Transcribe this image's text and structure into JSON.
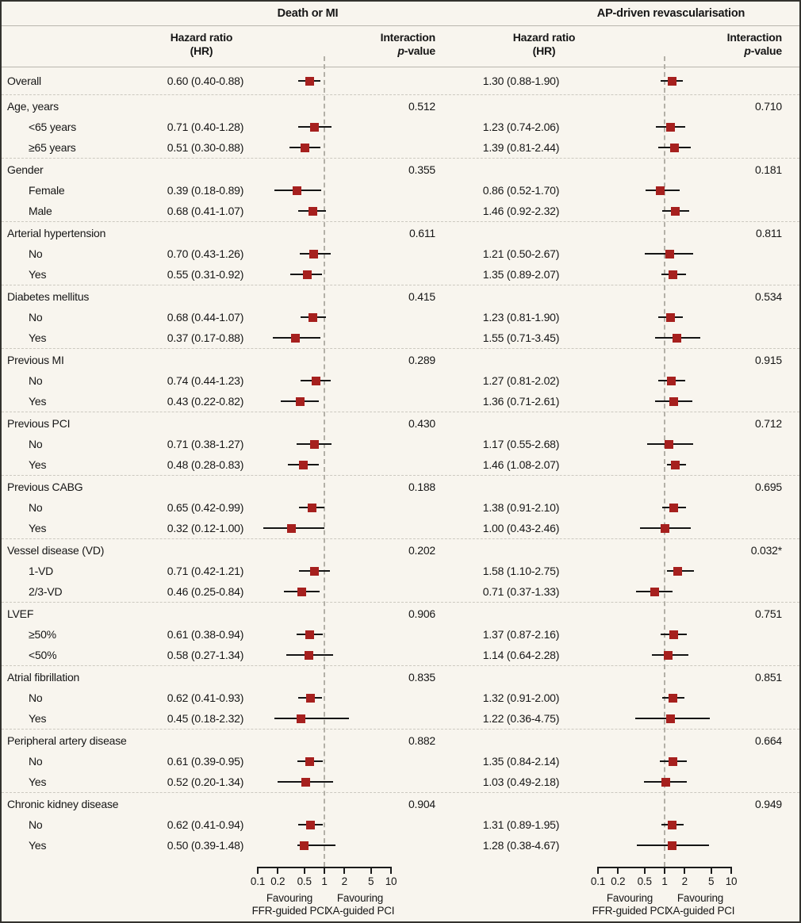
{
  "header": {
    "outcome_left": "Death or MI",
    "outcome_right": "AP-driven revascularisation",
    "hazard_ratio_line1": "Hazard ratio",
    "hazard_ratio_line2": "(HR)",
    "interaction_line1": "Interaction",
    "interaction_p": "p",
    "interaction_suffix": "-value"
  },
  "axis": {
    "tick_labels": [
      "0.1",
      "0.2",
      "0.5",
      "1",
      "2",
      "5",
      "10"
    ],
    "favouring_left_line1": "Favouring",
    "favouring_left_line2": "FFR-guided PCI",
    "favouring_right_line1": "Favouring",
    "favouring_right_line2": "XA-guided PCI"
  },
  "colors": {
    "marker_red": "#a6201e",
    "ci_black": "#151515",
    "background_cream": "#f8f5ee",
    "border_dark": "#33322e",
    "ref_line_grey": "#b3b0a7"
  },
  "chart_data": {
    "type": "forest",
    "x_scale": "log10",
    "x_range": [
      0.1,
      10
    ],
    "x_ticks": [
      0.1,
      0.2,
      0.5,
      1,
      2,
      5,
      10
    ],
    "ref_line": 1,
    "outcomes": [
      "Death or MI",
      "AP-driven revascularisation"
    ],
    "columns": [
      "Hazard ratio (HR)",
      "Interaction p-value"
    ],
    "rows": [
      {
        "kind": "overall",
        "label": "Overall",
        "left": {
          "text": "0.60 (0.40-0.88)",
          "hr": 0.6,
          "lo": 0.4,
          "hi": 0.88
        },
        "right": {
          "text": "1.30 (0.88-1.90)",
          "hr": 1.3,
          "lo": 0.88,
          "hi": 1.9
        }
      },
      {
        "kind": "group",
        "label": "Age, years",
        "p_left": "0.512",
        "p_right": "0.710"
      },
      {
        "kind": "item",
        "label": "<65 years",
        "left": {
          "text": "0.71 (0.40-1.28)",
          "hr": 0.71,
          "lo": 0.4,
          "hi": 1.28
        },
        "right": {
          "text": "1.23 (0.74-2.06)",
          "hr": 1.23,
          "lo": 0.74,
          "hi": 2.06
        }
      },
      {
        "kind": "item",
        "label": "≥65 years",
        "left": {
          "text": "0.51 (0.30-0.88)",
          "hr": 0.51,
          "lo": 0.3,
          "hi": 0.88
        },
        "right": {
          "text": "1.39 (0.81-2.44)",
          "hr": 1.39,
          "lo": 0.81,
          "hi": 2.44
        }
      },
      {
        "kind": "group",
        "label": "Gender",
        "p_left": "0.355",
        "p_right": "0.181"
      },
      {
        "kind": "item",
        "label": "Female",
        "left": {
          "text": "0.39 (0.18-0.89)",
          "hr": 0.39,
          "lo": 0.18,
          "hi": 0.89
        },
        "right": {
          "text": "0.86 (0.52-1.70)",
          "hr": 0.86,
          "lo": 0.52,
          "hi": 1.7
        }
      },
      {
        "kind": "item",
        "label": "Male",
        "left": {
          "text": "0.68 (0.41-1.07)",
          "hr": 0.68,
          "lo": 0.41,
          "hi": 1.07
        },
        "right": {
          "text": "1.46 (0.92-2.32)",
          "hr": 1.46,
          "lo": 0.92,
          "hi": 2.32
        }
      },
      {
        "kind": "group",
        "label": "Arterial hypertension",
        "p_left": "0.611",
        "p_right": "0.811"
      },
      {
        "kind": "item",
        "label": "No",
        "left": {
          "text": "0.70 (0.43-1.26)",
          "hr": 0.7,
          "lo": 0.43,
          "hi": 1.26
        },
        "right": {
          "text": "1.21 (0.50-2.67)",
          "hr": 1.21,
          "lo": 0.5,
          "hi": 2.67
        }
      },
      {
        "kind": "item",
        "label": "Yes",
        "left": {
          "text": "0.55 (0.31-0.92)",
          "hr": 0.55,
          "lo": 0.31,
          "hi": 0.92
        },
        "right": {
          "text": "1.35 (0.89-2.07)",
          "hr": 1.35,
          "lo": 0.89,
          "hi": 2.07
        }
      },
      {
        "kind": "group",
        "label": "Diabetes mellitus",
        "p_left": "0.415",
        "p_right": "0.534"
      },
      {
        "kind": "item",
        "label": "No",
        "left": {
          "text": "0.68 (0.44-1.07)",
          "hr": 0.68,
          "lo": 0.44,
          "hi": 1.07
        },
        "right": {
          "text": "1.23 (0.81-1.90)",
          "hr": 1.23,
          "lo": 0.81,
          "hi": 1.9
        }
      },
      {
        "kind": "item",
        "label": "Yes",
        "left": {
          "text": "0.37 (0.17-0.88)",
          "hr": 0.37,
          "lo": 0.17,
          "hi": 0.88
        },
        "right": {
          "text": "1.55 (0.71-3.45)",
          "hr": 1.55,
          "lo": 0.71,
          "hi": 3.45
        }
      },
      {
        "kind": "group",
        "label": "Previous MI",
        "p_left": "0.289",
        "p_right": "0.915"
      },
      {
        "kind": "item",
        "label": "No",
        "left": {
          "text": "0.74 (0.44-1.23)",
          "hr": 0.74,
          "lo": 0.44,
          "hi": 1.23
        },
        "right": {
          "text": "1.27 (0.81-2.02)",
          "hr": 1.27,
          "lo": 0.81,
          "hi": 2.02
        }
      },
      {
        "kind": "item",
        "label": "Yes",
        "left": {
          "text": "0.43 (0.22-0.82)",
          "hr": 0.43,
          "lo": 0.22,
          "hi": 0.82
        },
        "right": {
          "text": "1.36 (0.71-2.61)",
          "hr": 1.36,
          "lo": 0.71,
          "hi": 2.61
        }
      },
      {
        "kind": "group",
        "label": "Previous PCI",
        "p_left": "0.430",
        "p_right": "0.712"
      },
      {
        "kind": "item",
        "label": "No",
        "left": {
          "text": "0.71 (0.38-1.27)",
          "hr": 0.71,
          "lo": 0.38,
          "hi": 1.27
        },
        "right": {
          "text": "1.17 (0.55-2.68)",
          "hr": 1.17,
          "lo": 0.55,
          "hi": 2.68
        }
      },
      {
        "kind": "item",
        "label": "Yes",
        "left": {
          "text": "0.48 (0.28-0.83)",
          "hr": 0.48,
          "lo": 0.28,
          "hi": 0.83
        },
        "right": {
          "text": "1.46 (1.08-2.07)",
          "hr": 1.46,
          "lo": 1.08,
          "hi": 2.07
        }
      },
      {
        "kind": "group",
        "label": "Previous CABG",
        "p_left": "0.188",
        "p_right": "0.695"
      },
      {
        "kind": "item",
        "label": "No",
        "left": {
          "text": "0.65 (0.42-0.99)",
          "hr": 0.65,
          "lo": 0.42,
          "hi": 0.99
        },
        "right": {
          "text": "1.38 (0.91-2.10)",
          "hr": 1.38,
          "lo": 0.91,
          "hi": 2.1
        }
      },
      {
        "kind": "item",
        "label": "Yes",
        "left": {
          "text": "0.32 (0.12-1.00)",
          "hr": 0.32,
          "lo": 0.12,
          "hi": 1.0
        },
        "right": {
          "text": "1.00 (0.43-2.46)",
          "hr": 1.0,
          "lo": 0.43,
          "hi": 2.46
        }
      },
      {
        "kind": "group",
        "label": "Vessel disease (VD)",
        "p_left": "0.202",
        "p_right": "0.032*"
      },
      {
        "kind": "item",
        "label": "1-VD",
        "left": {
          "text": "0.71 (0.42-1.21)",
          "hr": 0.71,
          "lo": 0.42,
          "hi": 1.21
        },
        "right": {
          "text": "1.58 (1.10-2.75)",
          "hr": 1.58,
          "lo": 1.1,
          "hi": 2.75
        }
      },
      {
        "kind": "item",
        "label": "2/3-VD",
        "left": {
          "text": "0.46 (0.25-0.84)",
          "hr": 0.46,
          "lo": 0.25,
          "hi": 0.84
        },
        "right": {
          "text": "0.71 (0.37-1.33)",
          "hr": 0.71,
          "lo": 0.37,
          "hi": 1.33
        }
      },
      {
        "kind": "group",
        "label": "LVEF",
        "p_left": "0.906",
        "p_right": "0.751"
      },
      {
        "kind": "item",
        "label": "≥50%",
        "left": {
          "text": "0.61 (0.38-0.94)",
          "hr": 0.61,
          "lo": 0.38,
          "hi": 0.94
        },
        "right": {
          "text": "1.37 (0.87-2.16)",
          "hr": 1.37,
          "lo": 0.87,
          "hi": 2.16
        }
      },
      {
        "kind": "item",
        "label": "<50%",
        "left": {
          "text": "0.58 (0.27-1.34)",
          "hr": 0.58,
          "lo": 0.27,
          "hi": 1.34
        },
        "right": {
          "text": "1.14 (0.64-2.28)",
          "hr": 1.14,
          "lo": 0.64,
          "hi": 2.28
        }
      },
      {
        "kind": "group",
        "label": "Atrial fibrillation",
        "p_left": "0.835",
        "p_right": "0.851"
      },
      {
        "kind": "item",
        "label": "No",
        "left": {
          "text": "0.62 (0.41-0.93)",
          "hr": 0.62,
          "lo": 0.41,
          "hi": 0.93
        },
        "right": {
          "text": "1.32 (0.91-2.00)",
          "hr": 1.32,
          "lo": 0.91,
          "hi": 2.0
        }
      },
      {
        "kind": "item",
        "label": "Yes",
        "left": {
          "text": "0.45 (0.18-2.32)",
          "hr": 0.45,
          "lo": 0.18,
          "hi": 2.32
        },
        "right": {
          "text": "1.22 (0.36-4.75)",
          "hr": 1.22,
          "lo": 0.36,
          "hi": 4.75
        }
      },
      {
        "kind": "group",
        "label": "Peripheral artery disease",
        "p_left": "0.882",
        "p_right": "0.664"
      },
      {
        "kind": "item",
        "label": "No",
        "left": {
          "text": "0.61 (0.39-0.95)",
          "hr": 0.61,
          "lo": 0.39,
          "hi": 0.95
        },
        "right": {
          "text": "1.35 (0.84-2.14)",
          "hr": 1.35,
          "lo": 0.84,
          "hi": 2.14
        }
      },
      {
        "kind": "item",
        "label": "Yes",
        "left": {
          "text": "0.52 (0.20-1.34)",
          "hr": 0.52,
          "lo": 0.2,
          "hi": 1.34
        },
        "right": {
          "text": "1.03 (0.49-2.18)",
          "hr": 1.03,
          "lo": 0.49,
          "hi": 2.18
        }
      },
      {
        "kind": "group",
        "label": "Chronic kidney disease",
        "p_left": "0.904",
        "p_right": "0.949"
      },
      {
        "kind": "item",
        "label": "No",
        "left": {
          "text": "0.62 (0.41-0.94)",
          "hr": 0.62,
          "lo": 0.41,
          "hi": 0.94
        },
        "right": {
          "text": "1.31 (0.89-1.95)",
          "hr": 1.31,
          "lo": 0.89,
          "hi": 1.95
        }
      },
      {
        "kind": "item",
        "label": "Yes",
        "left": {
          "text": "0.50 (0.39-1.48)",
          "hr": 0.5,
          "lo": 0.39,
          "hi": 1.48
        },
        "right": {
          "text": "1.28 (0.38-4.67)",
          "hr": 1.28,
          "lo": 0.38,
          "hi": 4.67
        }
      }
    ]
  }
}
